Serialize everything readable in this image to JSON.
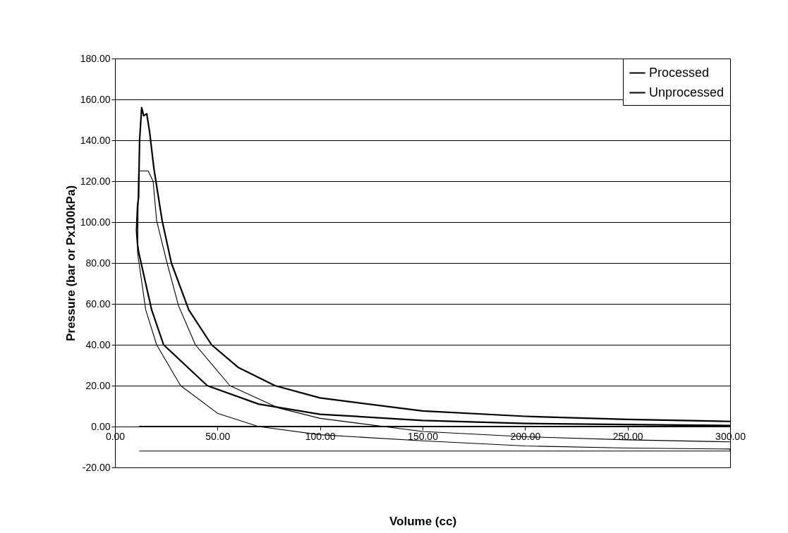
{
  "chart_data": {
    "type": "line",
    "xlabel": "Volume (cc)",
    "ylabel": "Pressure (bar or Px100kPa)",
    "xlim": [
      0,
      300
    ],
    "ylim": [
      -20,
      180
    ],
    "xticks": [
      {
        "value": 0,
        "label": "0.00"
      },
      {
        "value": 50,
        "label": "50.00"
      },
      {
        "value": 100,
        "label": "100.00"
      },
      {
        "value": 150,
        "label": "150.00"
      },
      {
        "value": 200,
        "label": "200.00"
      },
      {
        "value": 250,
        "label": "250.00"
      },
      {
        "value": 300,
        "label": "300.00"
      }
    ],
    "yticks": [
      {
        "value": -20,
        "label": "-20.00"
      },
      {
        "value": 0,
        "label": "0.00"
      },
      {
        "value": 20,
        "label": "20.00"
      },
      {
        "value": 40,
        "label": "40.00"
      },
      {
        "value": 60,
        "label": "60.00"
      },
      {
        "value": 80,
        "label": "80.00"
      },
      {
        "value": 100,
        "label": "100.00"
      },
      {
        "value": 120,
        "label": "120.00"
      },
      {
        "value": 140,
        "label": "140.00"
      },
      {
        "value": 160,
        "label": "160.00"
      },
      {
        "value": 180,
        "label": "180.00"
      }
    ],
    "grid": "y",
    "legend": "top right",
    "marker": "none",
    "line_style": "solid",
    "series": [
      {
        "name": "Processed",
        "color": "#000000",
        "x": [
          12,
          300,
          300,
          250,
          200,
          150,
          100,
          70,
          45,
          23.7,
          17.9,
          11.5,
          11,
          10.5,
          11,
          11.5,
          12,
          13,
          14,
          15.5,
          16.9,
          19,
          23,
          27.5,
          36,
          47.1,
          60,
          78,
          100,
          150,
          200,
          250,
          300
        ],
        "values": [
          0,
          0,
          0.5,
          1,
          1.5,
          3,
          6,
          11,
          20,
          40,
          57,
          85.5,
          89,
          96,
          108,
          112,
          140,
          156,
          152,
          153,
          144,
          126,
          100.7,
          80,
          57,
          40,
          29,
          20,
          14,
          7.6,
          5,
          3.5,
          2.5
        ]
      },
      {
        "name": "Unprocessed",
        "color": "#000000",
        "x": [
          12,
          300,
          300,
          250,
          200,
          150,
          100,
          70,
          50,
          32,
          20.3,
          15,
          11,
          11.5,
          16.2,
          18.6,
          20.3,
          25.4,
          31,
          39.2,
          56,
          80,
          100,
          150,
          200,
          250,
          300
        ],
        "values": [
          -12,
          -12,
          -11,
          -10.5,
          -9.5,
          -7,
          -4,
          0,
          6.5,
          20,
          40,
          57,
          85,
          125,
          125,
          120,
          100.7,
          80,
          59,
          40,
          20,
          9,
          4,
          -2.4,
          -5,
          -6.5,
          -7.5
        ]
      }
    ]
  }
}
